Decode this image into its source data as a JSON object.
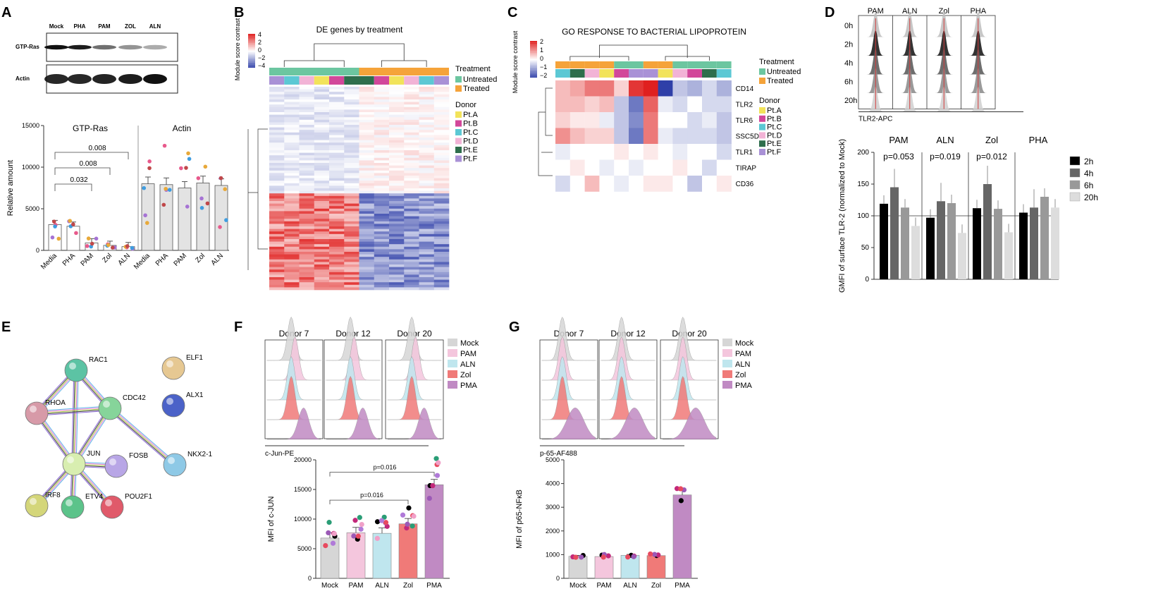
{
  "panel_labels": {
    "A": "A",
    "B": "B",
    "C": "C",
    "D": "D",
    "E": "E",
    "F": "F",
    "G": "G"
  },
  "colors": {
    "mock": "#d6d6d6",
    "pam": "#f4c6dd",
    "aln": "#bfe6ee",
    "zol": "#f07a78",
    "pma": "#c08ac3",
    "untreated": "#6cc6a0",
    "treated": "#f5a33a",
    "ptA": "#f2e35a",
    "ptB": "#d2479a",
    "ptC": "#5cc8d4",
    "ptD": "#f2b3d6",
    "ptE": "#2e6e4c",
    "ptF": "#a991d6",
    "heat_high": "#e0201f",
    "heat_low": "#2f3fa8"
  },
  "panelA": {
    "blot_lanes": [
      "Mock",
      "PHA",
      "PAM",
      "ZOL",
      "ALN"
    ],
    "blot_rows": [
      "GTP-Ras",
      "Actin"
    ],
    "chart_data": {
      "type": "bar",
      "groups": [
        {
          "name": "GTP-Ras",
          "categories": [
            "Media",
            "PHA",
            "PAM",
            "Zol",
            "ALN"
          ],
          "values": [
            3100,
            2900,
            900,
            600,
            450
          ]
        },
        {
          "name": "Actin",
          "categories": [
            "Media",
            "PHA",
            "PAM",
            "Zol",
            "ALN"
          ],
          "values": [
            8000,
            7900,
            7500,
            8100,
            7800
          ]
        }
      ],
      "ylabel": "Relative amount",
      "yticks": [
        "0",
        "5000",
        "10000",
        "15000"
      ],
      "ylim": [
        0,
        15000
      ],
      "pvalues": [
        "0.008",
        "0.008",
        "0.032"
      ]
    }
  },
  "panelB": {
    "title": "DE genes by treatment",
    "scale_label": "Module score contrast",
    "scale_ticks": [
      "4",
      "2",
      "0",
      "−2",
      "−4"
    ],
    "legend_treatment_title": "Treatment",
    "legend_treatment": [
      "Untreated",
      "Treated"
    ],
    "legend_donor_title": "Donor",
    "legend_donor": [
      "Pt.A",
      "Pt.B",
      "Pt.C",
      "Pt.D",
      "Pt.E",
      "Pt.F"
    ]
  },
  "panelC": {
    "title": "GO RESPONSE TO BACTERIAL LIPOPROTEIN",
    "scale_label": "Module score contrast",
    "scale_ticks": [
      "2",
      "1",
      "0",
      "−1",
      "−2"
    ],
    "genes": [
      "CD14",
      "TLR2",
      "TLR6",
      "SSC5D",
      "TLR1",
      "TIRAP",
      "CD36"
    ],
    "legend_treatment_title": "Treatment",
    "legend_treatment": [
      "Untreated",
      "Treated"
    ],
    "legend_donor_title": "Donor",
    "legend_donor": [
      "Pt.A",
      "Pt.B",
      "Pt.C",
      "Pt.D",
      "Pt.E",
      "Pt.F"
    ]
  },
  "panelD": {
    "columns": [
      "PAM",
      "ALN",
      "Zol",
      "PHA"
    ],
    "timepoints": [
      "0h",
      "2h",
      "4h",
      "6h",
      "20h"
    ],
    "axis": "TLR2-APC",
    "chart_data": {
      "type": "bar",
      "categories": [
        "PAM",
        "ALN",
        "Zol",
        "PHA"
      ],
      "series": [
        {
          "name": "2h",
          "values": [
            119,
            97,
            112,
            105
          ]
        },
        {
          "name": "4h",
          "values": [
            145,
            123,
            150,
            113
          ]
        },
        {
          "name": "6h",
          "values": [
            113,
            120,
            111,
            130
          ]
        },
        {
          "name": "20h",
          "values": [
            84,
            73,
            74,
            113
          ]
        }
      ],
      "ylabel": "GMFI of surface TLR-2 (normalized to Mock)",
      "yticks": [
        "0",
        "50",
        "100",
        "150",
        "200"
      ],
      "ylim": [
        0,
        200
      ],
      "pvalues": [
        "p=0.053",
        "p=0.019",
        "p=0.012"
      ]
    }
  },
  "panelE": {
    "nodes": [
      "RAC1",
      "RHOA",
      "CDC42",
      "JUN",
      "FOSB",
      "NKX2-1",
      "IRF8",
      "ETV4",
      "POU2F1",
      "ELF1",
      "ALX1"
    ]
  },
  "panelF": {
    "donors": [
      "Donor 7",
      "Donor 12",
      "Donor 20"
    ],
    "axis": "c-Jun-PE",
    "legend": [
      "Mock",
      "PAM",
      "ALN",
      "Zol",
      "PMA"
    ],
    "chart_data": {
      "type": "bar",
      "categories": [
        "Mock",
        "PAM",
        "ALN",
        "Zol",
        "PMA"
      ],
      "values": [
        6800,
        7700,
        7600,
        9200,
        15800
      ],
      "ylabel": "MFI of c-JUN",
      "yticks": [
        "0",
        "5000",
        "10000",
        "15000",
        "20000"
      ],
      "ylim": [
        0,
        20000
      ],
      "pvalues": [
        "p=0.016",
        "p=0.016"
      ]
    }
  },
  "panelG": {
    "donors": [
      "Donor 7",
      "Donor 12",
      "Donor 20"
    ],
    "axis": "p-65-AF488",
    "legend": [
      "Mock",
      "PAM",
      "ALN",
      "Zol",
      "PMA"
    ],
    "chart_data": {
      "type": "bar",
      "categories": [
        "Mock",
        "PAM",
        "ALN",
        "Zol",
        "PMA"
      ],
      "values": [
        930,
        920,
        970,
        960,
        3520
      ],
      "ylabel": "MFI of p65-NFκB",
      "yticks": [
        "0",
        "1000",
        "2000",
        "3000",
        "4000",
        "5000"
      ],
      "ylim": [
        0,
        5000
      ]
    }
  }
}
